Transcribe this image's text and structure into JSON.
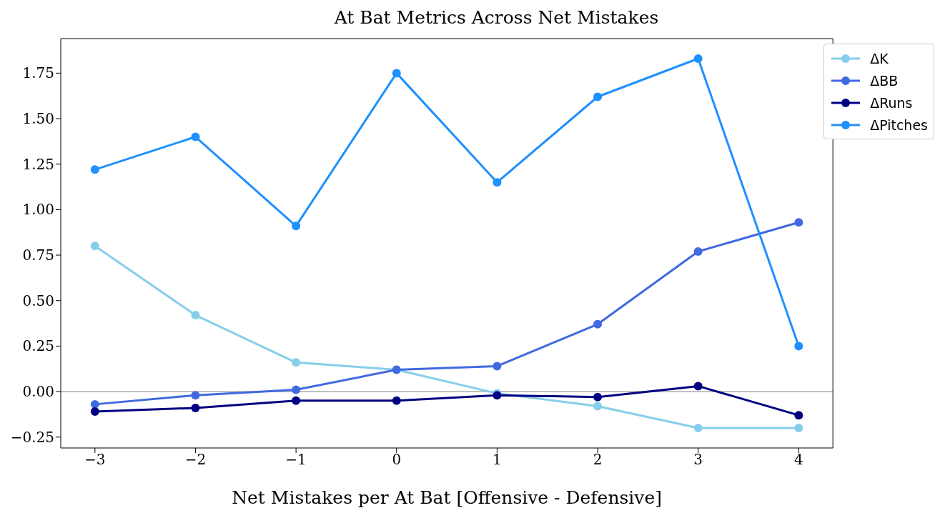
{
  "chart_data": {
    "type": "line",
    "title": "At Bat Metrics Across Net Mistakes",
    "xlabel": "Net Mistakes per At Bat [Offensive - Defensive]",
    "x": [
      -3,
      -2,
      -1,
      0,
      1,
      2,
      3,
      4
    ],
    "series": [
      {
        "name": "ΔK",
        "color": "#87ceeb",
        "values": [
          0.8,
          0.42,
          0.16,
          0.12,
          -0.01,
          -0.08,
          -0.2,
          -0.2
        ]
      },
      {
        "name": "ΔBB",
        "color": "#4169e1",
        "values": [
          -0.07,
          -0.02,
          0.01,
          0.12,
          0.14,
          0.37,
          0.77,
          0.93
        ]
      },
      {
        "name": "ΔRuns",
        "color": "#000080",
        "values": [
          -0.11,
          -0.09,
          -0.05,
          -0.05,
          -0.02,
          -0.03,
          0.03,
          -0.13
        ]
      },
      {
        "name": "ΔPitches",
        "color": "#1e90ff",
        "values": [
          1.22,
          1.4,
          0.91,
          1.75,
          1.15,
          1.62,
          1.83,
          0.25
        ]
      }
    ],
    "xlim": [
      -3.34,
      4.34
    ],
    "xticks": [
      {
        "value": -3,
        "label": "−3"
      },
      {
        "value": -2,
        "label": "−2"
      },
      {
        "value": -1,
        "label": "−1"
      },
      0,
      1,
      2,
      3,
      4
    ],
    "ylim": [
      -0.31,
      1.94
    ],
    "yticks": [
      {
        "value": -0.25,
        "label": "−0.25"
      },
      {
        "value": 0,
        "label": "0.00"
      },
      {
        "value": 0.25,
        "label": "0.25"
      },
      {
        "value": 0.5,
        "label": "0.50"
      },
      {
        "value": 0.75,
        "label": "0.75"
      },
      {
        "value": 1,
        "label": "1.00"
      },
      {
        "value": 1.25,
        "label": "1.25"
      },
      {
        "value": 1.5,
        "label": "1.50"
      },
      {
        "value": 1.75,
        "label": "1.75"
      }
    ],
    "ref_lines": [
      {
        "axis": "y",
        "value": 0,
        "color": "#808080"
      }
    ],
    "legend": "top right",
    "marker": "circle",
    "line_style": "solid",
    "grid": false
  }
}
